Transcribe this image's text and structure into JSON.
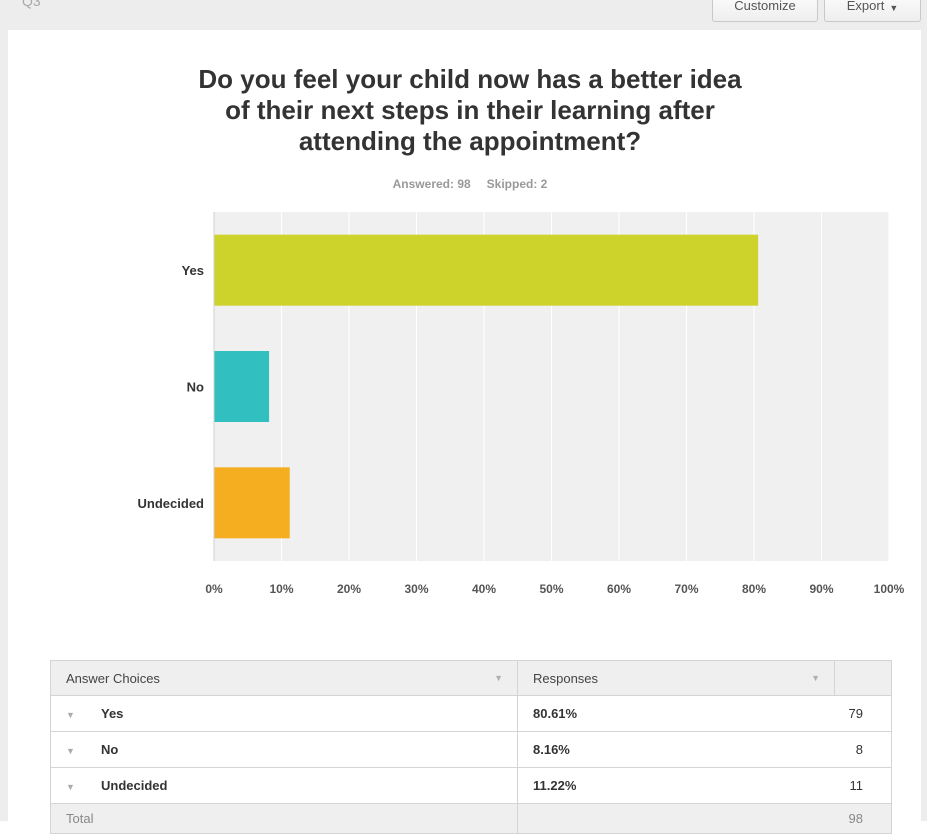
{
  "header": {
    "question_id": "Q3",
    "customize_label": "Customize",
    "export_label": "Export"
  },
  "question": {
    "line1": "Do you feel your child now has a better idea",
    "line2": "of their next steps in their learning after",
    "line3": "attending the appointment?",
    "answered": "Answered: 98",
    "skipped": "Skipped: 2"
  },
  "chart_data": {
    "type": "bar",
    "orientation": "horizontal",
    "categories": [
      "Yes",
      "No",
      "Undecided"
    ],
    "values": [
      80.61,
      8.16,
      11.22
    ],
    "colors": [
      "#cdd32b",
      "#32bfc0",
      "#f5ae1f"
    ],
    "xlim": [
      0,
      100
    ],
    "xticks": [
      "0%",
      "10%",
      "20%",
      "30%",
      "40%",
      "50%",
      "60%",
      "70%",
      "80%",
      "90%",
      "100%"
    ],
    "grid": true
  },
  "table": {
    "col_choices": "Answer Choices",
    "col_responses": "Responses",
    "rows": [
      {
        "choice": "Yes",
        "percent": "80.61%",
        "count": "79"
      },
      {
        "choice": "No",
        "percent": "8.16%",
        "count": "8"
      },
      {
        "choice": "Undecided",
        "percent": "11.22%",
        "count": "11"
      }
    ],
    "total_label": "Total",
    "total_count": "98"
  }
}
